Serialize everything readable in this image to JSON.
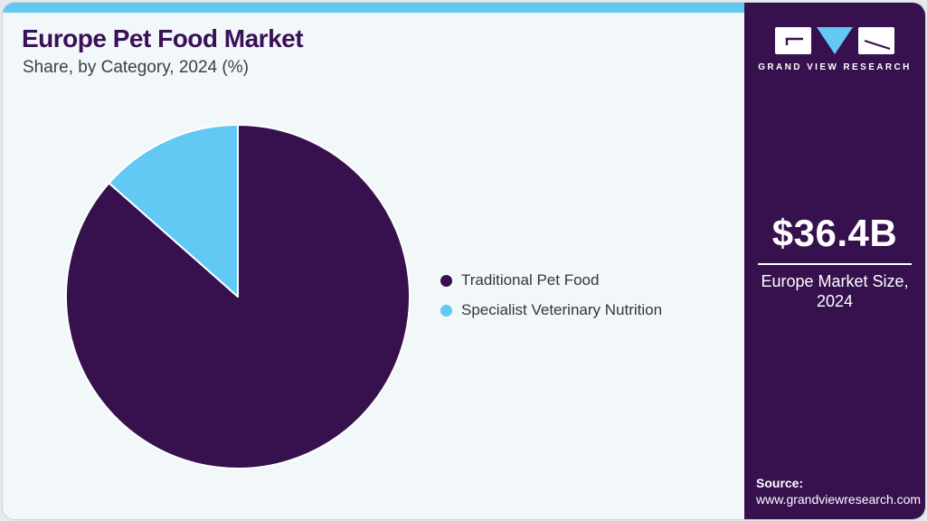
{
  "page": {
    "title": "Europe Pet Food Market",
    "subtitle": "Share, by Category, 2024 (%)"
  },
  "chart_data": {
    "type": "pie",
    "title": "Europe Pet Food Market Share, by Category, 2024 (%)",
    "categories": [
      "Traditional Pet Food",
      "Specialist Veterinary Nutrition"
    ],
    "values": [
      86.5,
      13.5
    ],
    "unit": "%",
    "colors": [
      "#36114e",
      "#61c9f4"
    ],
    "start_angle_deg": 0,
    "direction": "clockwise",
    "legend_position": "right-middle",
    "slice_stroke": "#ffffff"
  },
  "sidebar": {
    "brand": "GRAND VIEW RESEARCH",
    "market_size_value": "$36.4B",
    "market_size_label": "Europe Market Size, 2024",
    "source_label": "Source:",
    "source_url": "www.grandviewresearch.com"
  },
  "theme": {
    "purple": "#36114e",
    "purple_dark": "#3a1157",
    "accent_cyan": "#62c9f3",
    "card_bg": "#f2f7fa"
  }
}
